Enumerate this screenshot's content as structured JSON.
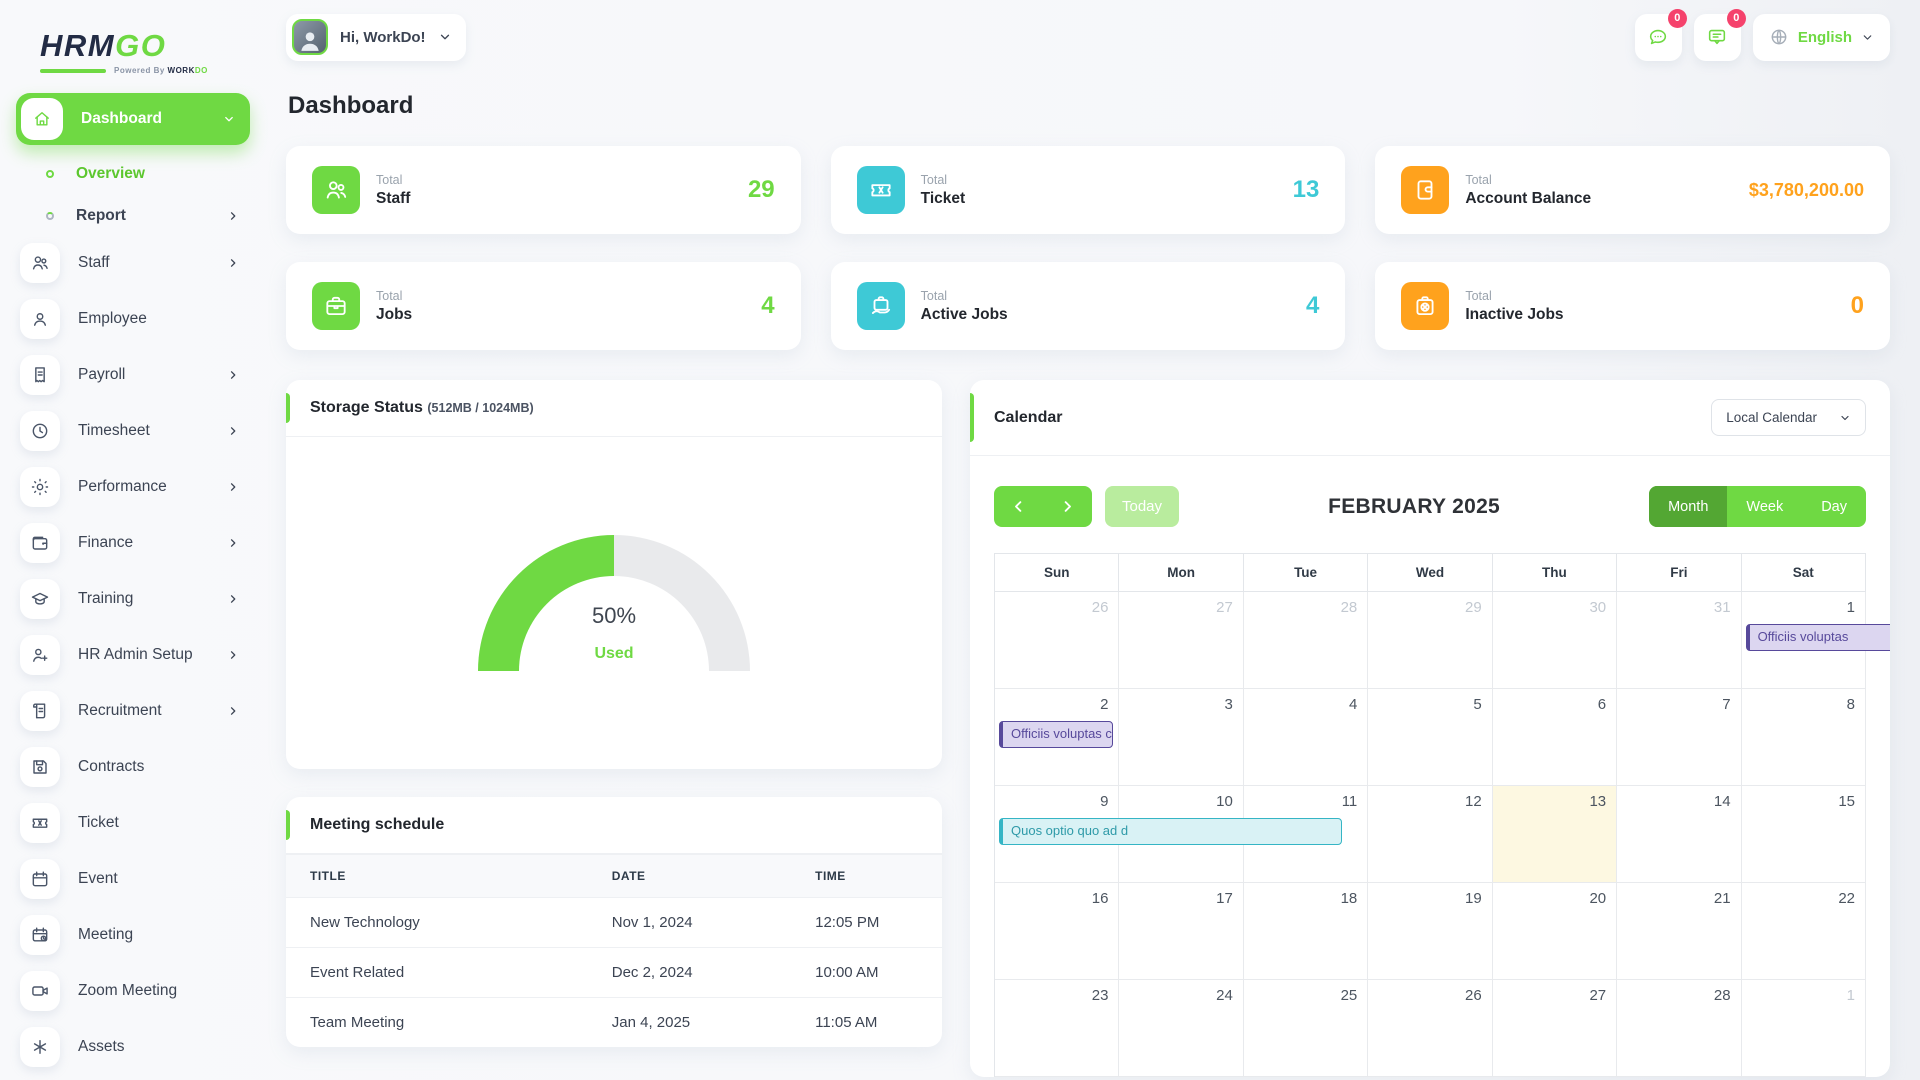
{
  "brand": {
    "name_primary": "HRM",
    "name_secondary": "GO",
    "powered_prefix": "Powered By ",
    "powered_brand_dark": "WORK",
    "powered_brand_green": "DO"
  },
  "topbar": {
    "greeting": "Hi, WorkDo!",
    "language": "English",
    "chat_badge": "0",
    "notification_badge": "0"
  },
  "sidebar": {
    "items": [
      {
        "label": "Dashboard",
        "icon": "home-icon",
        "active": true,
        "chevron": "down"
      },
      {
        "label": "Overview",
        "icon": "bullet-icon",
        "sub": true,
        "active": true
      },
      {
        "label": "Report",
        "icon": "bullet-icon",
        "sub": true,
        "chevron": "right"
      },
      {
        "label": "Staff",
        "icon": "users-icon",
        "chevron": "right"
      },
      {
        "label": "Employee",
        "icon": "user-icon"
      },
      {
        "label": "Payroll",
        "icon": "receipt-icon",
        "chevron": "right"
      },
      {
        "label": "Timesheet",
        "icon": "clock-icon",
        "chevron": "right"
      },
      {
        "label": "Performance",
        "icon": "target-icon",
        "chevron": "right"
      },
      {
        "label": "Finance",
        "icon": "wallet-icon",
        "chevron": "right"
      },
      {
        "label": "Training",
        "icon": "graduation-cap-icon",
        "chevron": "right"
      },
      {
        "label": "HR Admin Setup",
        "icon": "user-plus-icon",
        "chevron": "right"
      },
      {
        "label": "Recruitment",
        "icon": "document-icon",
        "chevron": "right"
      },
      {
        "label": "Contracts",
        "icon": "save-icon"
      },
      {
        "label": "Ticket",
        "icon": "ticket-icon"
      },
      {
        "label": "Event",
        "icon": "calendar-icon"
      },
      {
        "label": "Meeting",
        "icon": "calendar-clock-icon"
      },
      {
        "label": "Zoom Meeting",
        "icon": "video-icon"
      },
      {
        "label": "Assets",
        "icon": "asterisk-icon"
      }
    ]
  },
  "page": {
    "title": "Dashboard"
  },
  "stats": [
    {
      "prefix": "Total",
      "label": "Staff",
      "value": "29",
      "color": "#6fd943",
      "icon": "stat-users-icon"
    },
    {
      "prefix": "Total",
      "label": "Ticket",
      "value": "13",
      "color": "#3ec9d6",
      "icon": "stat-ticket-icon"
    },
    {
      "prefix": "Total",
      "label": "Account Balance",
      "value": "$3,780,200.00",
      "color": "#ffa21d",
      "icon": "stat-wallet-icon"
    },
    {
      "prefix": "Total",
      "label": "Jobs",
      "value": "4",
      "color": "#6fd943",
      "icon": "stat-briefcase-icon"
    },
    {
      "prefix": "Total",
      "label": "Active Jobs",
      "value": "4",
      "color": "#3ec9d6",
      "icon": "stat-briefcase-hand-icon"
    },
    {
      "prefix": "Total",
      "label": "Inactive Jobs",
      "value": "0",
      "color": "#ffa21d",
      "icon": "stat-briefcase-x-icon"
    }
  ],
  "storage": {
    "title": "Storage Status",
    "subtitle": "(512MB / 1024MB)",
    "percent": 50,
    "percent_label": "50%",
    "used_label": "Used"
  },
  "calendar": {
    "title": "Calendar",
    "source_select": "Local Calendar",
    "today_label": "Today",
    "month_title": "FEBRUARY 2025",
    "views": [
      "Month",
      "Week",
      "Day"
    ],
    "active_view": "Month",
    "weekdays": [
      "Sun",
      "Mon",
      "Tue",
      "Wed",
      "Thu",
      "Fri",
      "Sat"
    ],
    "weeks": [
      [
        {
          "d": "26",
          "m": true
        },
        {
          "d": "27",
          "m": true
        },
        {
          "d": "28",
          "m": true
        },
        {
          "d": "29",
          "m": true
        },
        {
          "d": "30",
          "m": true
        },
        {
          "d": "31",
          "m": true
        },
        {
          "d": "1"
        }
      ],
      [
        {
          "d": "2"
        },
        {
          "d": "3"
        },
        {
          "d": "4"
        },
        {
          "d": "5"
        },
        {
          "d": "6"
        },
        {
          "d": "7"
        },
        {
          "d": "8"
        }
      ],
      [
        {
          "d": "9"
        },
        {
          "d": "10"
        },
        {
          "d": "11"
        },
        {
          "d": "12"
        },
        {
          "d": "13",
          "today": true
        },
        {
          "d": "14"
        },
        {
          "d": "15"
        }
      ],
      [
        {
          "d": "16"
        },
        {
          "d": "17"
        },
        {
          "d": "18"
        },
        {
          "d": "19"
        },
        {
          "d": "20"
        },
        {
          "d": "21"
        },
        {
          "d": "22"
        }
      ],
      [
        {
          "d": "23"
        },
        {
          "d": "24"
        },
        {
          "d": "25"
        },
        {
          "d": "26"
        },
        {
          "d": "27"
        },
        {
          "d": "28"
        },
        {
          "d": "1",
          "m": true
        }
      ]
    ],
    "events": [
      {
        "label": "Officiis voluptas",
        "week": 0,
        "day": 6,
        "span": 1.6,
        "color": "purple"
      },
      {
        "label": "Officiis voluptas c",
        "week": 1,
        "day": 0,
        "span": 1,
        "color": "purple"
      },
      {
        "label": "Quos optio quo ad d",
        "week": 2,
        "day": 0,
        "span": 2.85,
        "color": "cyan"
      }
    ]
  },
  "meetings": {
    "title": "Meeting schedule",
    "columns": [
      "Title",
      "Date",
      "Time"
    ],
    "rows": [
      {
        "title": "New Technology",
        "date": "Nov 1, 2024",
        "time": "12:05 PM"
      },
      {
        "title": "Event Related",
        "date": "Dec 2, 2024",
        "time": "10:00 AM"
      },
      {
        "title": "Team Meeting",
        "date": "Jan 4, 2025",
        "time": "11:05 AM"
      }
    ]
  }
}
